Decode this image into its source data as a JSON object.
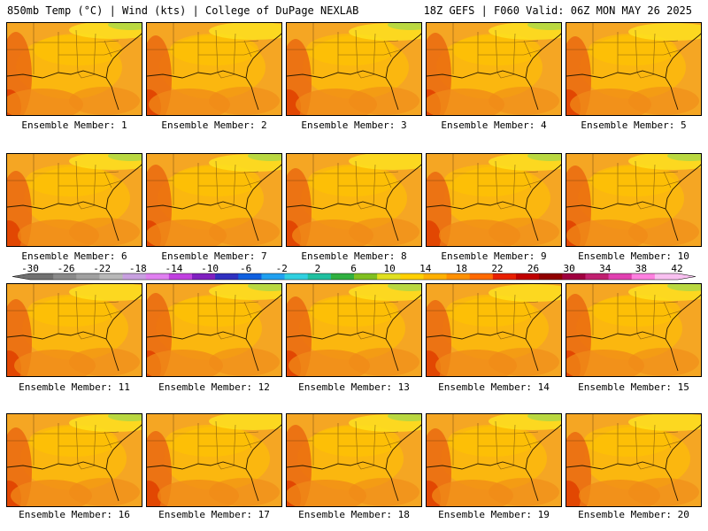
{
  "header": {
    "title_left": "850mb Temp (°C) | Wind (kts) | College of DuPage NEXLAB",
    "title_right": "18Z GEFS | F060 Valid: 06Z MON MAY 26 2025"
  },
  "panels": [
    {
      "label": "Ensemble Member: 1"
    },
    {
      "label": "Ensemble Member: 2"
    },
    {
      "label": "Ensemble Member: 3"
    },
    {
      "label": "Ensemble Member: 4"
    },
    {
      "label": "Ensemble Member: 5"
    },
    {
      "label": "Ensemble Member: 6"
    },
    {
      "label": "Ensemble Member: 7"
    },
    {
      "label": "Ensemble Member: 8"
    },
    {
      "label": "Ensemble Member: 9"
    },
    {
      "label": "Ensemble Member: 10"
    },
    {
      "label": "Ensemble Member: 11"
    },
    {
      "label": "Ensemble Member: 12"
    },
    {
      "label": "Ensemble Member: 13"
    },
    {
      "label": "Ensemble Member: 14"
    },
    {
      "label": "Ensemble Member: 15"
    },
    {
      "label": "Ensemble Member: 16"
    },
    {
      "label": "Ensemble Member: 17"
    },
    {
      "label": "Ensemble Member: 18"
    },
    {
      "label": "Ensemble Member: 19"
    },
    {
      "label": "Ensemble Member: 20"
    }
  ],
  "colorbar": {
    "labels": [
      "-30",
      "-26",
      "-22",
      "-18",
      "-14",
      "-10",
      "-6",
      "-2",
      "2",
      "6",
      "10",
      "14",
      "18",
      "22",
      "26",
      "30",
      "34",
      "38",
      "42"
    ],
    "colors": [
      "#707070",
      "#8a8a8a",
      "#a0a0a0",
      "#b8b8b8",
      "#c8a0e0",
      "#e080f0",
      "#c040e0",
      "#8020c0",
      "#3030c0",
      "#1060e0",
      "#20a0f0",
      "#30d0e0",
      "#20c0a0",
      "#30b040",
      "#80c020",
      "#e0e020",
      "#ffd000",
      "#ffb000",
      "#ff9000",
      "#ff6a00",
      "#e82000",
      "#c00000",
      "#900000",
      "#a00040",
      "#c02070",
      "#e040b0",
      "#ff80e0",
      "#f8c0f0"
    ]
  },
  "palette": {
    "base": "#f5a623",
    "warm": "#f08a18",
    "warmer": "#ea6a10",
    "hot": "#e04000",
    "cool": "#ffc400",
    "cooler": "#fde020",
    "green": "#a8d848",
    "border": "#000000"
  }
}
